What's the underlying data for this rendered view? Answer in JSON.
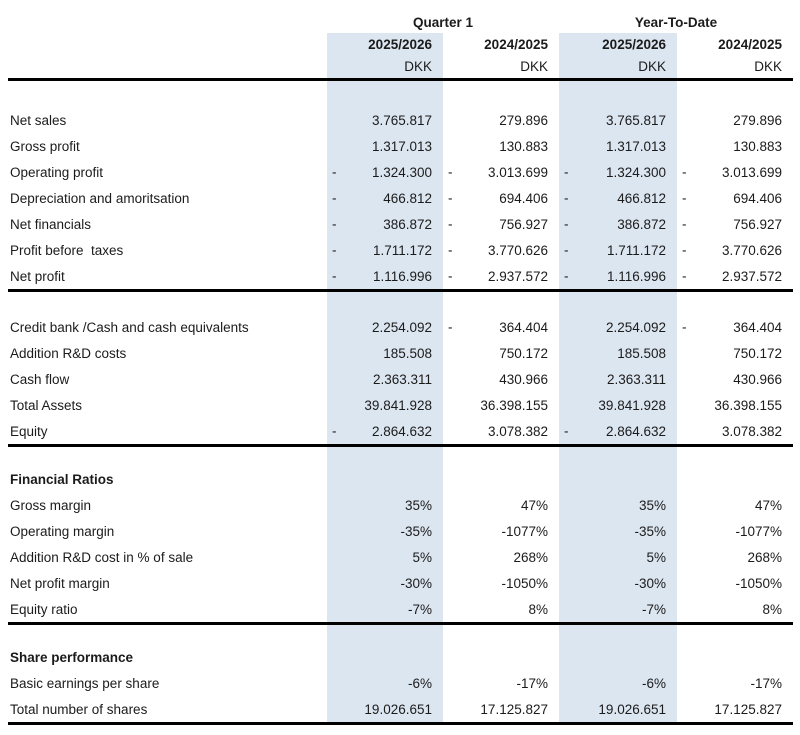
{
  "colors": {
    "highlight_column": "#dce6f1",
    "rule": "#000000",
    "text": "#1b1b1b",
    "background": "#ffffff"
  },
  "table": {
    "column_groups": [
      {
        "label": "Quarter 1"
      },
      {
        "label": "Year-To-Date"
      }
    ],
    "columns": [
      {
        "year": "2025/2026",
        "currency": "DKK",
        "highlight": true
      },
      {
        "year": "2024/2025",
        "currency": "DKK",
        "highlight": false
      },
      {
        "year": "2025/2026",
        "currency": "DKK",
        "highlight": true
      },
      {
        "year": "2024/2025",
        "currency": "DKK",
        "highlight": false
      }
    ],
    "rows": [
      {
        "type": "blank",
        "size": "lg"
      },
      {
        "type": "data",
        "label": "Net sales",
        "values": [
          {
            "v": "3.765.817"
          },
          {
            "v": "279.896"
          },
          {
            "v": "3.765.817"
          },
          {
            "v": "279.896"
          }
        ]
      },
      {
        "type": "data",
        "label": "Gross profit",
        "values": [
          {
            "v": "1.317.013"
          },
          {
            "v": "130.883"
          },
          {
            "v": "1.317.013"
          },
          {
            "v": "130.883"
          }
        ]
      },
      {
        "type": "data",
        "label": "Operating profit",
        "values": [
          {
            "v": "1.324.300",
            "neg": true
          },
          {
            "v": "3.013.699",
            "neg": true
          },
          {
            "v": "1.324.300",
            "neg": true
          },
          {
            "v": "3.013.699",
            "neg": true
          }
        ]
      },
      {
        "type": "data",
        "label": "Depreciation and amoritsation",
        "values": [
          {
            "v": "466.812",
            "neg": true
          },
          {
            "v": "694.406",
            "neg": true
          },
          {
            "v": "466.812",
            "neg": true
          },
          {
            "v": "694.406",
            "neg": true
          }
        ]
      },
      {
        "type": "data",
        "label": "Net financials",
        "values": [
          {
            "v": "386.872",
            "neg": true
          },
          {
            "v": "756.927",
            "neg": true
          },
          {
            "v": "386.872",
            "neg": true
          },
          {
            "v": "756.927",
            "neg": true
          }
        ]
      },
      {
        "type": "data",
        "label": "Profit before  taxes",
        "values": [
          {
            "v": "1.711.172",
            "neg": true
          },
          {
            "v": "3.770.626",
            "neg": true
          },
          {
            "v": "1.711.172",
            "neg": true
          },
          {
            "v": "3.770.626",
            "neg": true
          }
        ]
      },
      {
        "type": "data",
        "label": "Net profit",
        "rule_after": true,
        "values": [
          {
            "v": "1.116.996",
            "neg": true
          },
          {
            "v": "2.937.572",
            "neg": true
          },
          {
            "v": "1.116.996",
            "neg": true
          },
          {
            "v": "2.937.572",
            "neg": true
          }
        ]
      },
      {
        "type": "blank",
        "size": "md"
      },
      {
        "type": "data",
        "label": "Credit bank /Cash and cash equivalents",
        "values": [
          {
            "v": "2.254.092"
          },
          {
            "v": "364.404",
            "neg": true
          },
          {
            "v": "2.254.092"
          },
          {
            "v": "364.404",
            "neg": true
          }
        ]
      },
      {
        "type": "data",
        "label": "Addition R&D costs",
        "values": [
          {
            "v": "185.508"
          },
          {
            "v": "750.172"
          },
          {
            "v": "185.508"
          },
          {
            "v": "750.172"
          }
        ]
      },
      {
        "type": "data",
        "label": "Cash flow",
        "values": [
          {
            "v": "2.363.311"
          },
          {
            "v": "430.966"
          },
          {
            "v": "2.363.311"
          },
          {
            "v": "430.966"
          }
        ]
      },
      {
        "type": "data",
        "label": "Total Assets",
        "values": [
          {
            "v": "39.841.928"
          },
          {
            "v": "36.398.155"
          },
          {
            "v": "39.841.928"
          },
          {
            "v": "36.398.155"
          }
        ]
      },
      {
        "type": "data",
        "label": "Equity",
        "rule_after": true,
        "values": [
          {
            "v": "2.864.632",
            "neg": true
          },
          {
            "v": "3.078.382"
          },
          {
            "v": "2.864.632",
            "neg": true
          },
          {
            "v": "3.078.382"
          }
        ]
      },
      {
        "type": "blank",
        "size": "sm"
      },
      {
        "type": "section",
        "label": "Financial Ratios"
      },
      {
        "type": "data",
        "label": "Gross margin",
        "values": [
          {
            "v": "35%"
          },
          {
            "v": "47%"
          },
          {
            "v": "35%"
          },
          {
            "v": "47%"
          }
        ]
      },
      {
        "type": "data",
        "label": "Operating margin",
        "values": [
          {
            "v": "-35%"
          },
          {
            "v": "-1077%"
          },
          {
            "v": "-35%"
          },
          {
            "v": "-1077%"
          }
        ]
      },
      {
        "type": "data",
        "label": "Addition R&D cost in % of sale",
        "values": [
          {
            "v": "5%"
          },
          {
            "v": "268%"
          },
          {
            "v": "5%"
          },
          {
            "v": "268%"
          }
        ]
      },
      {
        "type": "data",
        "label": "Net profit margin",
        "values": [
          {
            "v": "-30%"
          },
          {
            "v": "-1050%"
          },
          {
            "v": "-30%"
          },
          {
            "v": "-1050%"
          }
        ]
      },
      {
        "type": "data",
        "label": "Equity ratio",
        "rule_after": true,
        "values": [
          {
            "v": "-7%"
          },
          {
            "v": "8%"
          },
          {
            "v": "-7%"
          },
          {
            "v": "8%"
          }
        ]
      },
      {
        "type": "blank",
        "size": "sm"
      },
      {
        "type": "section",
        "label": "Share performance"
      },
      {
        "type": "data",
        "label": "Basic earnings per share",
        "values": [
          {
            "v": "-6%"
          },
          {
            "v": "-17%"
          },
          {
            "v": "-6%"
          },
          {
            "v": "-17%"
          }
        ]
      },
      {
        "type": "data",
        "label": "Total number of shares",
        "rule_after": true,
        "values": [
          {
            "v": "19.026.651"
          },
          {
            "v": "17.125.827"
          },
          {
            "v": "19.026.651"
          },
          {
            "v": "17.125.827"
          }
        ]
      }
    ]
  }
}
